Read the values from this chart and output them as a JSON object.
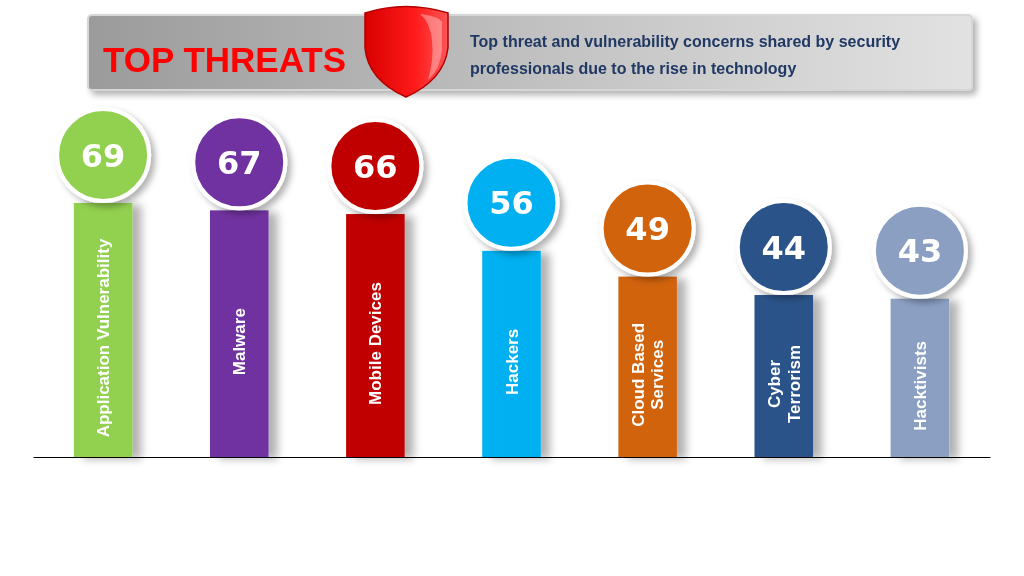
{
  "chart_data": {
    "type": "bar",
    "title": "TOP THREATS",
    "subtitle": "Top threat and vulnerability concerns shared by security professionals due to the rise in technology",
    "categories": [
      "Application Vulnerability",
      "Malware",
      "Mobile Devices",
      "Hackers",
      "Cloud Based Services",
      "Cyber Terrorism",
      "Hacktivists"
    ],
    "values": [
      69,
      67,
      66,
      56,
      49,
      44,
      43
    ],
    "colors": [
      "#92d050",
      "#7030a0",
      "#c00000",
      "#00b0f0",
      "#d2640e",
      "#2a5289",
      "#8a9fc2"
    ],
    "data_labels": true,
    "tick_labels": "x"
  }
}
